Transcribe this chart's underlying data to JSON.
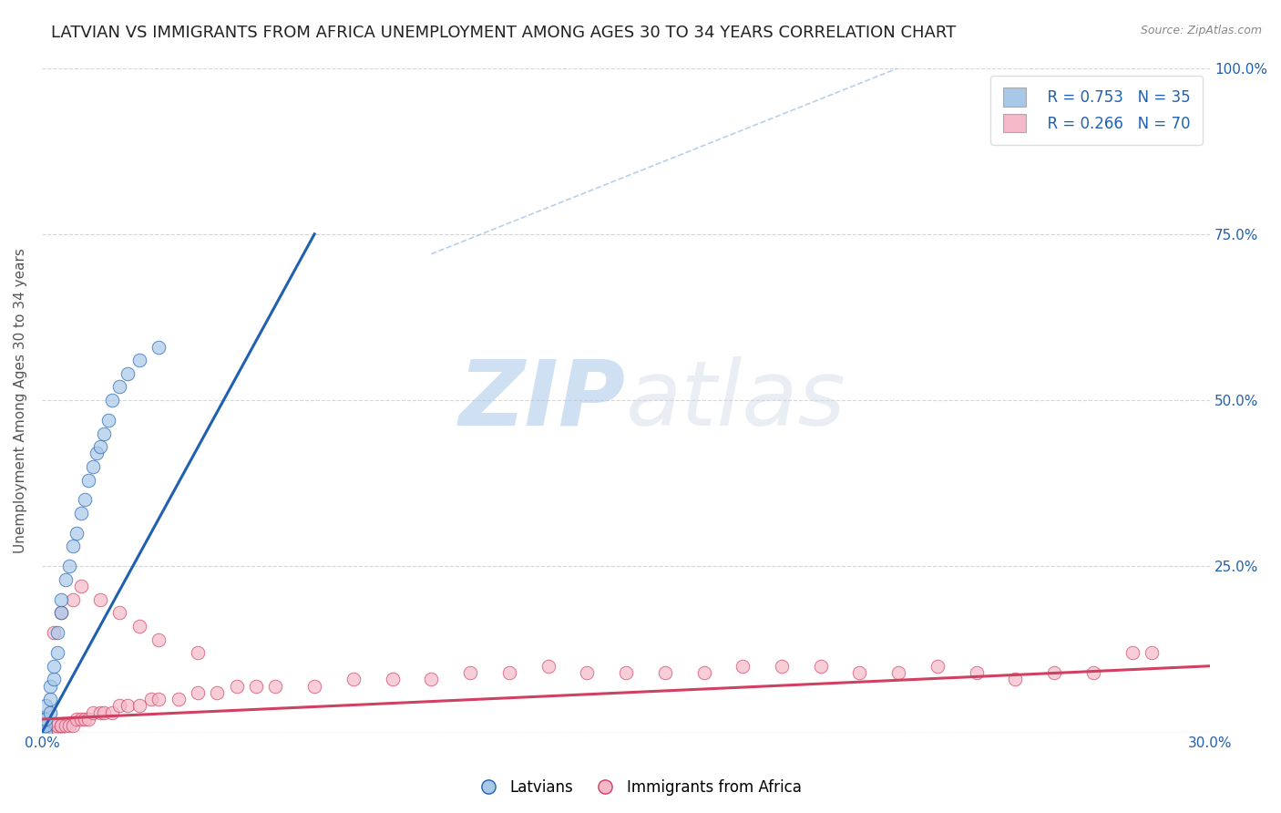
{
  "title": "LATVIAN VS IMMIGRANTS FROM AFRICA UNEMPLOYMENT AMONG AGES 30 TO 34 YEARS CORRELATION CHART",
  "source_text": "Source: ZipAtlas.com",
  "ylabel": "Unemployment Among Ages 30 to 34 years",
  "xlim": [
    0.0,
    0.3
  ],
  "ylim": [
    0.0,
    1.0
  ],
  "latvian_color": "#a8c8e8",
  "africa_color": "#f4b8c8",
  "latvian_line_color": "#2060b0",
  "africa_line_color": "#d04060",
  "diag_line_color": "#aac8e8",
  "legend_R_latvian": "R = 0.753",
  "legend_N_latvian": "N = 35",
  "legend_R_africa": "R = 0.266",
  "legend_N_africa": "N = 70",
  "legend_latvian_label": "Latvians",
  "legend_africa_label": "Immigrants from Africa",
  "watermark_zip": "ZIP",
  "watermark_atlas": "atlas",
  "background_color": "#ffffff",
  "title_fontsize": 13,
  "axis_label_fontsize": 11,
  "tick_fontsize": 11,
  "latvian_scatter": {
    "x": [
      0.0,
      0.0,
      0.0,
      0.0,
      0.0,
      0.001,
      0.001,
      0.001,
      0.001,
      0.002,
      0.002,
      0.002,
      0.003,
      0.003,
      0.004,
      0.004,
      0.005,
      0.005,
      0.006,
      0.007,
      0.008,
      0.009,
      0.01,
      0.011,
      0.012,
      0.013,
      0.014,
      0.015,
      0.016,
      0.017,
      0.018,
      0.02,
      0.022,
      0.025,
      0.03
    ],
    "y": [
      0.0,
      0.0,
      0.0,
      0.01,
      0.02,
      0.0,
      0.01,
      0.02,
      0.04,
      0.03,
      0.05,
      0.07,
      0.08,
      0.1,
      0.12,
      0.15,
      0.18,
      0.2,
      0.23,
      0.25,
      0.28,
      0.3,
      0.33,
      0.35,
      0.38,
      0.4,
      0.42,
      0.43,
      0.45,
      0.47,
      0.5,
      0.52,
      0.54,
      0.56,
      0.58
    ]
  },
  "africa_scatter": {
    "x": [
      0.0,
      0.0,
      0.0,
      0.0,
      0.0,
      0.001,
      0.001,
      0.001,
      0.002,
      0.002,
      0.003,
      0.003,
      0.004,
      0.004,
      0.005,
      0.005,
      0.006,
      0.007,
      0.008,
      0.009,
      0.01,
      0.011,
      0.012,
      0.013,
      0.015,
      0.016,
      0.018,
      0.02,
      0.022,
      0.025,
      0.028,
      0.03,
      0.035,
      0.04,
      0.045,
      0.05,
      0.055,
      0.06,
      0.07,
      0.08,
      0.09,
      0.1,
      0.11,
      0.12,
      0.13,
      0.14,
      0.15,
      0.16,
      0.17,
      0.18,
      0.19,
      0.2,
      0.21,
      0.22,
      0.23,
      0.24,
      0.25,
      0.26,
      0.27,
      0.28,
      0.003,
      0.005,
      0.008,
      0.01,
      0.015,
      0.02,
      0.025,
      0.03,
      0.04,
      0.285
    ],
    "y": [
      0.0,
      0.0,
      0.0,
      0.0,
      0.0,
      0.0,
      0.0,
      0.0,
      0.0,
      0.0,
      0.0,
      0.0,
      0.0,
      0.01,
      0.01,
      0.01,
      0.01,
      0.01,
      0.01,
      0.02,
      0.02,
      0.02,
      0.02,
      0.03,
      0.03,
      0.03,
      0.03,
      0.04,
      0.04,
      0.04,
      0.05,
      0.05,
      0.05,
      0.06,
      0.06,
      0.07,
      0.07,
      0.07,
      0.07,
      0.08,
      0.08,
      0.08,
      0.09,
      0.09,
      0.1,
      0.09,
      0.09,
      0.09,
      0.09,
      0.1,
      0.1,
      0.1,
      0.09,
      0.09,
      0.1,
      0.09,
      0.08,
      0.09,
      0.09,
      0.12,
      0.15,
      0.18,
      0.2,
      0.22,
      0.2,
      0.18,
      0.16,
      0.14,
      0.12,
      0.12
    ]
  },
  "lv_line": {
    "x0": 0.0,
    "y0": 0.0,
    "x1": 0.07,
    "y1": 0.75
  },
  "af_line": {
    "x0": 0.0,
    "y0": 0.02,
    "x1": 0.3,
    "y1": 0.1
  },
  "diag_line": {
    "x0": 0.1,
    "y0": 0.72,
    "x1": 0.22,
    "y1": 1.0
  }
}
